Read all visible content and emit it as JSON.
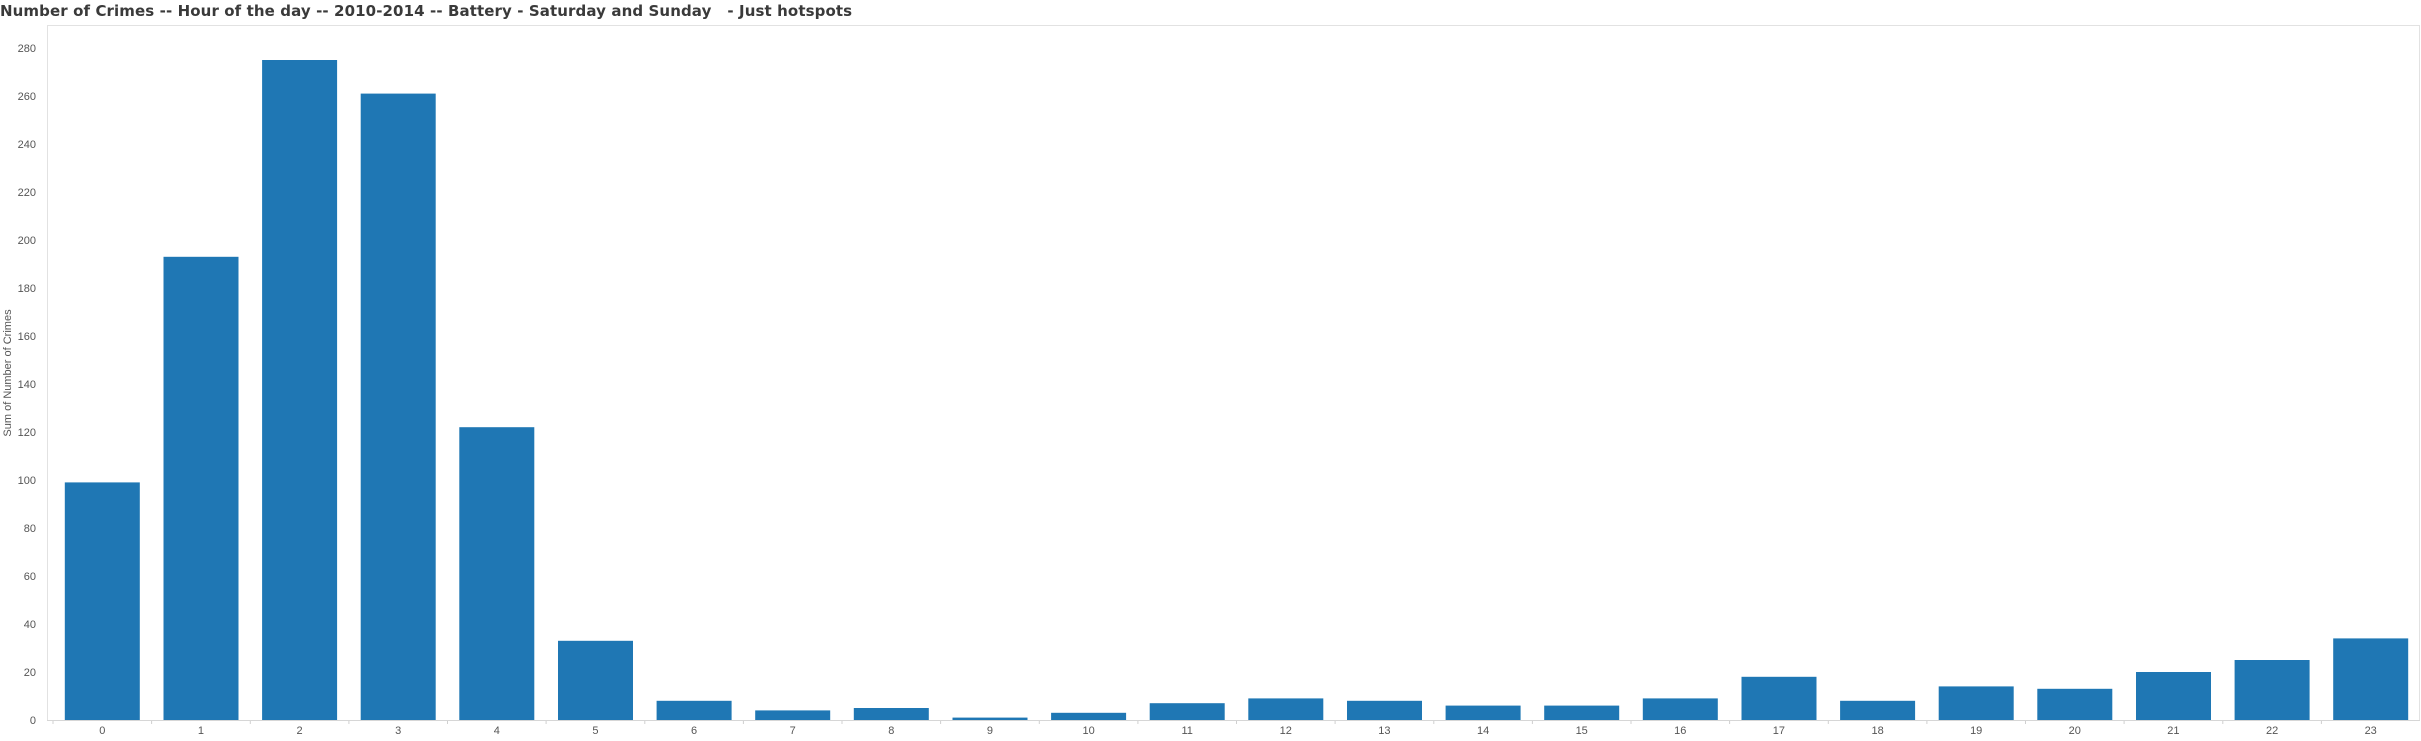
{
  "chart_data": {
    "type": "bar",
    "title": "Number of Crimes -- Hour of the day -- 2010-2014 -- Battery - Saturday and Sunday   - Just hotspots",
    "ylabel": "Sum of Number of Crimes",
    "xlabel": "",
    "categories": [
      "0",
      "1",
      "2",
      "3",
      "4",
      "5",
      "6",
      "7",
      "8",
      "9",
      "10",
      "11",
      "12",
      "13",
      "14",
      "15",
      "16",
      "17",
      "18",
      "19",
      "20",
      "21",
      "22",
      "23"
    ],
    "values": [
      99,
      193,
      275,
      261,
      122,
      33,
      8,
      4,
      5,
      1,
      3,
      7,
      9,
      8,
      6,
      6,
      9,
      18,
      8,
      14,
      13,
      20,
      25,
      34
    ],
    "ylim": [
      0,
      280
    ],
    "yticks": [
      0,
      20,
      40,
      60,
      80,
      100,
      120,
      140,
      160,
      180,
      200,
      220,
      240,
      260,
      280
    ],
    "color": "#1f77b4",
    "grid": false,
    "legend": "none"
  }
}
